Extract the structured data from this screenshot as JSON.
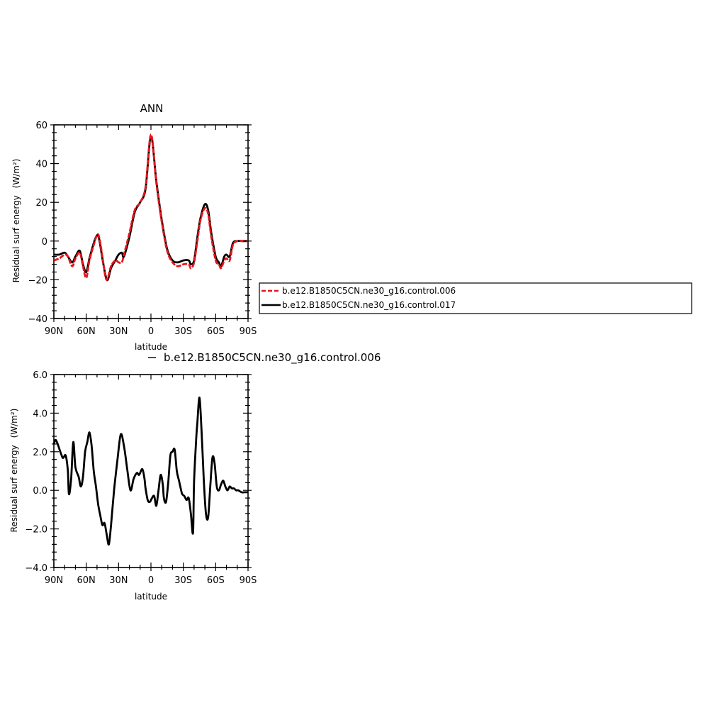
{
  "chart_data": [
    {
      "type": "line",
      "title": "ANN",
      "xlabel": "latitude",
      "ylabel": "Residual surf energy",
      "ylabel_unit": "(W/m²)",
      "xlim": [
        90,
        -90
      ],
      "ylim": [
        -40,
        60
      ],
      "x_ticks": [
        90,
        60,
        30,
        0,
        -30,
        -60,
        -90
      ],
      "x_tick_labels": [
        "90N",
        "60N",
        "30N",
        "0",
        "30S",
        "60S",
        "90S"
      ],
      "y_ticks": [
        -40,
        -20,
        0,
        20,
        40,
        60
      ],
      "y_tick_labels": [
        "−40",
        "−20",
        "0",
        "20",
        "40",
        "60"
      ],
      "legend_position": "right",
      "series": [
        {
          "name": "b.e12.B1850C5CN.ne30_g16.control.006",
          "color": "#e8141a",
          "style": "dashed",
          "x": [
            90,
            85,
            80,
            77,
            73,
            70,
            66,
            63,
            60,
            57,
            53,
            50,
            48,
            45,
            42,
            40,
            37,
            33,
            30,
            27,
            25,
            20,
            15,
            10,
            5,
            0,
            -5,
            -10,
            -15,
            -20,
            -25,
            -30,
            -35,
            -37,
            -40,
            -43,
            -46,
            -50,
            -53,
            -56,
            -60,
            -63,
            -65,
            -68,
            -70,
            -73,
            -76,
            -80,
            -85,
            -90
          ],
          "values": [
            -10,
            -9,
            -7,
            -8,
            -13,
            -9,
            -6,
            -13,
            -19,
            -10,
            -2,
            3,
            2,
            -8,
            -19,
            -19,
            -13,
            -10,
            -11,
            -11,
            -7,
            4,
            16,
            20,
            28,
            55,
            30,
            10,
            -5,
            -11,
            -13,
            -12,
            -12,
            -14,
            -11,
            0,
            11,
            17,
            14,
            2,
            -10,
            -12,
            -14,
            -10,
            -9,
            -10,
            -2,
            0,
            0,
            0
          ]
        },
        {
          "name": "b.e12.B1850C5CN.ne30_g16.control.017",
          "color": "#000000",
          "style": "solid",
          "x": [
            90,
            85,
            80,
            77,
            73,
            70,
            66,
            63,
            60,
            57,
            53,
            50,
            48,
            45,
            42,
            40,
            37,
            33,
            30,
            27,
            25,
            20,
            15,
            10,
            5,
            0,
            -5,
            -10,
            -15,
            -20,
            -25,
            -30,
            -35,
            -37,
            -40,
            -43,
            -46,
            -50,
            -53,
            -56,
            -60,
            -63,
            -65,
            -68,
            -70,
            -73,
            -76,
            -80,
            -85,
            -90
          ],
          "values": [
            -7,
            -7,
            -6,
            -8,
            -11,
            -8,
            -5,
            -12,
            -16,
            -9,
            -1,
            3,
            1,
            -9,
            -18,
            -20,
            -14,
            -10,
            -7,
            -6,
            -8,
            2,
            15,
            20,
            27,
            54,
            31,
            11,
            -4,
            -10,
            -11,
            -10,
            -10,
            -12,
            -10,
            2,
            12,
            19,
            16,
            4,
            -8,
            -11,
            -13,
            -8,
            -7,
            -8,
            -1,
            0,
            0,
            0
          ]
        }
      ]
    },
    {
      "type": "line",
      "title": "b.e12.B1850C5CN.ne30_g16.control.006",
      "xlabel": "latitude",
      "ylabel": "Residual surf energy",
      "ylabel_unit": "(W/m²)",
      "xlim": [
        90,
        -90
      ],
      "ylim": [
        -4,
        6
      ],
      "x_ticks": [
        90,
        60,
        30,
        0,
        -30,
        -60,
        -90
      ],
      "x_tick_labels": [
        "90N",
        "60N",
        "30N",
        "0",
        "30S",
        "60S",
        "90S"
      ],
      "y_ticks": [
        -4,
        -2,
        0,
        2,
        4,
        6
      ],
      "y_tick_labels": [
        "−4.0",
        "−2.0",
        "0.0",
        "2.0",
        "4.0",
        "6.0"
      ],
      "series": [
        {
          "name": "b.e12.B1850C5CN.ne30_g16.control.006",
          "color": "#000000",
          "style": "solid",
          "x": [
            90,
            88,
            84,
            82,
            81,
            79,
            77,
            76,
            74,
            72,
            70,
            67,
            65,
            63,
            61,
            59,
            57,
            55,
            53,
            51,
            49,
            47,
            45,
            43,
            41,
            39,
            37,
            34,
            31,
            28,
            25,
            22,
            19,
            16,
            13,
            11,
            8,
            6,
            5,
            3,
            1,
            -1,
            -3,
            -5,
            -7,
            -9,
            -11,
            -12,
            -14,
            -16,
            -18,
            -20,
            -22,
            -24,
            -26,
            -28,
            -29,
            -31,
            -33,
            -35,
            -37,
            -39,
            -40,
            -42,
            -43,
            -45,
            -47,
            -49,
            -51,
            -53,
            -55,
            -57,
            -59,
            -61,
            -63,
            -65,
            -67,
            -69,
            -71,
            -73,
            -75,
            -77,
            -79,
            -81,
            -84,
            -87,
            -90
          ],
          "values": [
            2.4,
            2.6,
            2.0,
            1.7,
            1.7,
            1.8,
            1.0,
            -0.2,
            0.6,
            2.5,
            1.2,
            0.7,
            0.2,
            0.7,
            2.0,
            2.5,
            3.0,
            2.3,
            1.0,
            0.2,
            -0.7,
            -1.3,
            -1.8,
            -1.7,
            -2.3,
            -2.8,
            -1.8,
            0.1,
            1.6,
            2.9,
            2.3,
            1.1,
            0.0,
            0.6,
            0.9,
            0.8,
            1.1,
            0.6,
            0.1,
            -0.5,
            -0.6,
            -0.4,
            -0.3,
            -0.8,
            0.0,
            0.8,
            0.3,
            -0.4,
            -0.6,
            0.4,
            1.8,
            2.0,
            2.1,
            1.0,
            0.5,
            0.0,
            -0.2,
            -0.3,
            -0.5,
            -0.4,
            -1.2,
            -2.2,
            0.5,
            2.7,
            3.5,
            4.8,
            3.0,
            0.5,
            -1.2,
            -1.4,
            0.2,
            1.7,
            1.4,
            0.2,
            0.0,
            0.3,
            0.5,
            0.2,
            0.0,
            0.2,
            0.1,
            0.1,
            0.0,
            0.0,
            -0.1,
            -0.1,
            -0.1
          ]
        }
      ]
    }
  ]
}
